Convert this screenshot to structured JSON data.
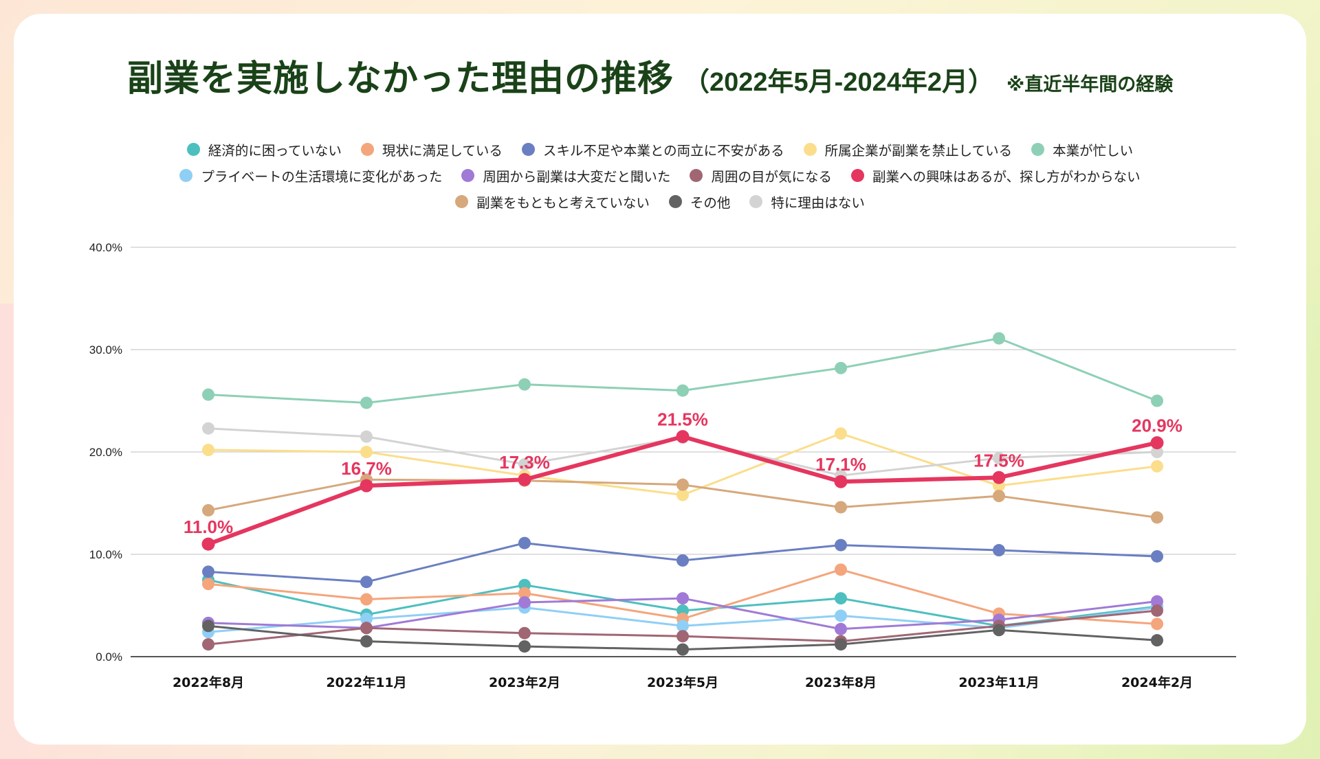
{
  "header": {
    "title": "副業を実施しなかった理由の推移",
    "range": "（2022年5月-2024年2月）",
    "note": "※直近半年間の経験"
  },
  "colors": {
    "title": "#1a4218",
    "highlight": "#e5365f",
    "gridline": "#cccccc",
    "axis": "#555555"
  },
  "legend_rows": [
    [
      0,
      1,
      2,
      3,
      4
    ],
    [
      5,
      6,
      7,
      8
    ],
    [
      9,
      10,
      11
    ]
  ],
  "chart_data": {
    "type": "line",
    "title": "副業を実施しなかった理由の推移（2022年5月-2024年2月）※直近半年間の経験",
    "xlabel": "",
    "ylabel": "",
    "categories": [
      "2022年8月",
      "2022年11月",
      "2023年2月",
      "2023年5月",
      "2023年8月",
      "2023年11月",
      "2024年2月"
    ],
    "ylim": [
      0,
      40
    ],
    "yticks": [
      0,
      10,
      20,
      30,
      40
    ],
    "ytick_labels": [
      "0.0%",
      "10.0%",
      "20.0%",
      "30.0%",
      "40.0%"
    ],
    "grid": true,
    "legend_position": "top-center",
    "series": [
      {
        "name": "経済的に困っていない",
        "color": "#4dbfbf",
        "values": [
          7.5,
          4.1,
          7.0,
          4.5,
          5.7,
          3.0,
          4.9
        ]
      },
      {
        "name": "現状に満足している",
        "color": "#f4a57c",
        "values": [
          7.1,
          5.6,
          6.2,
          3.7,
          8.5,
          4.2,
          3.2
        ]
      },
      {
        "name": "スキル不足や本業との両立に不安がある",
        "color": "#6a7fc1",
        "values": [
          8.3,
          7.3,
          11.1,
          9.4,
          10.9,
          10.4,
          9.8
        ]
      },
      {
        "name": "所属企業が副業を禁止している",
        "color": "#fbde8c",
        "values": [
          20.2,
          20.0,
          17.7,
          15.8,
          21.8,
          16.7,
          18.6
        ]
      },
      {
        "name": "本業が忙しい",
        "color": "#8dd0b5",
        "values": [
          25.6,
          24.8,
          26.6,
          26.0,
          28.2,
          31.1,
          25.0
        ]
      },
      {
        "name": "プライベートの生活環境に変化があった",
        "color": "#8fcff5",
        "values": [
          2.4,
          3.7,
          4.8,
          3.0,
          4.0,
          2.8,
          4.8
        ]
      },
      {
        "name": "周囲から副業は大変だと聞いた",
        "color": "#a07ad6",
        "values": [
          3.3,
          2.8,
          5.3,
          5.7,
          2.7,
          3.6,
          5.4
        ]
      },
      {
        "name": "周囲の目が気になる",
        "color": "#a06674",
        "values": [
          1.2,
          2.8,
          2.3,
          2.0,
          1.5,
          3.0,
          4.5
        ]
      },
      {
        "name": "副業への興味はあるが、探し方がわからない",
        "color": "#e5365f",
        "values": [
          11.0,
          16.7,
          17.3,
          21.5,
          17.1,
          17.5,
          20.9
        ],
        "highlight": true,
        "data_labels": [
          "11.0%",
          "16.7%",
          "17.3%",
          "21.5%",
          "17.1%",
          "17.5%",
          "20.9%"
        ]
      },
      {
        "name": "副業をもともと考えていない",
        "color": "#d6a87c",
        "values": [
          14.3,
          17.3,
          17.2,
          16.8,
          14.6,
          15.7,
          13.6
        ]
      },
      {
        "name": "その他",
        "color": "#626262",
        "values": [
          3.0,
          1.5,
          1.0,
          0.7,
          1.2,
          2.6,
          1.6
        ]
      },
      {
        "name": "特に理由はない",
        "color": "#d3d3d3",
        "values": [
          22.3,
          21.5,
          18.8,
          21.4,
          17.7,
          19.4,
          20.0
        ]
      }
    ]
  }
}
